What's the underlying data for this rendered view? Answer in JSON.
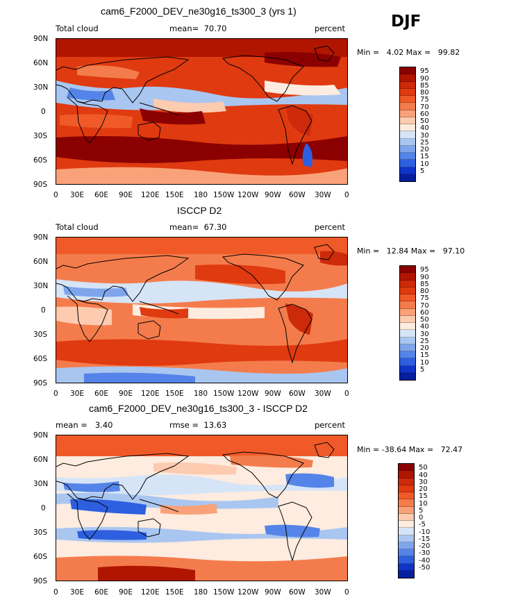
{
  "season": "DJF",
  "panels": [
    {
      "title": "cam6_F2000_DEV_ne30g16_ts300_3 (yrs 1)",
      "left_label": "Total cloud",
      "mean_label": "mean=",
      "mean_value": "70.70",
      "units": "percent",
      "min_label": "Min =",
      "min_value": "4.02",
      "max_label": "Max =",
      "max_value": "99.82",
      "color_levels": [
        "95",
        "90",
        "85",
        "80",
        "75",
        "70",
        "60",
        "50",
        "40",
        "30",
        "25",
        "20",
        "15",
        "10",
        "5"
      ],
      "colors": [
        "#8b0000",
        "#b01500",
        "#cc2a0a",
        "#e03a10",
        "#f05a28",
        "#f47c4c",
        "#f9a279",
        "#fccbb0",
        "#fdecdf",
        "#d6e4f7",
        "#a9c6f1",
        "#7ea5ec",
        "#5584e8",
        "#2e5fe0",
        "#1033c8",
        "#061f9e"
      ]
    },
    {
      "title": "ISCCP D2",
      "left_label": "Total cloud",
      "mean_label": "mean=",
      "mean_value": "67.30",
      "units": "percent",
      "min_label": "Min =",
      "min_value": "12.84",
      "max_label": "Max =",
      "max_value": "97.10",
      "color_levels": [
        "95",
        "90",
        "85",
        "80",
        "75",
        "70",
        "60",
        "50",
        "40",
        "30",
        "25",
        "20",
        "15",
        "10",
        "5"
      ],
      "colors": [
        "#8b0000",
        "#b01500",
        "#cc2a0a",
        "#e03a10",
        "#f05a28",
        "#f47c4c",
        "#f9a279",
        "#fccbb0",
        "#fdecdf",
        "#d6e4f7",
        "#a9c6f1",
        "#7ea5ec",
        "#5584e8",
        "#2e5fe0",
        "#1033c8",
        "#061f9e"
      ]
    },
    {
      "title": "cam6_F2000_DEV_ne30g16_ts300_3 - ISCCP D2",
      "left_label": "mean =",
      "left_value": "3.40",
      "mean_label": "rmse =",
      "mean_value": "13.63",
      "units": "percent",
      "min_label": "Min =",
      "min_value": "-38.64",
      "max_label": "Max =",
      "max_value": "72.47",
      "color_levels": [
        "50",
        "40",
        "30",
        "20",
        "15",
        "10",
        "5",
        "0",
        "-5",
        "-10",
        "-15",
        "-20",
        "-30",
        "-40",
        "-50"
      ],
      "colors": [
        "#8b0000",
        "#b01500",
        "#cc2a0a",
        "#e03a10",
        "#f05a28",
        "#f47c4c",
        "#f9a279",
        "#fccbb0",
        "#fdecdf",
        "#d6e4f7",
        "#a9c6f1",
        "#7ea5ec",
        "#5584e8",
        "#2e5fe0",
        "#1033c8",
        "#061f9e"
      ]
    }
  ],
  "lat_labels": [
    "90N",
    "60N",
    "30N",
    "0",
    "30S",
    "60S",
    "90S"
  ],
  "lon_labels": [
    "0",
    "30E",
    "60E",
    "90E",
    "120E",
    "150E",
    "180",
    "150W",
    "120W",
    "90W",
    "60W",
    "30W",
    "0"
  ]
}
